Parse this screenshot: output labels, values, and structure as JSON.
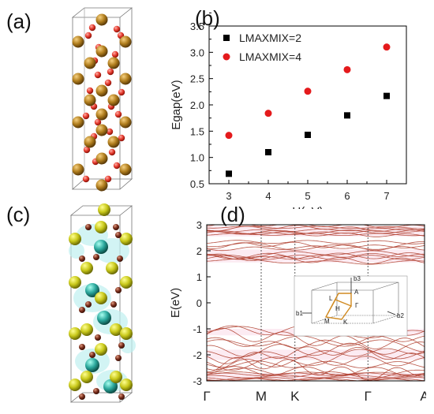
{
  "panels": {
    "a": "(a)",
    "b": "(b)",
    "c": "(c)",
    "d": "(d)"
  },
  "colors": {
    "atom_gold": "#b07d1d",
    "atom_red": "#e53a2e",
    "atom_yellow": "#c8c81a",
    "atom_teal": "#2aa79c",
    "atom_brown": "#7a2e1c",
    "band": "#b04030",
    "bz_path": "#d08a20"
  },
  "chart_data": [
    {
      "type": "scatter",
      "panel": "(b)",
      "xlabel": "U(eV)",
      "ylabel": "Egap(eV)",
      "xlim": [
        2.5,
        7.5
      ],
      "ylim": [
        0.5,
        3.5
      ],
      "xticks": [
        "3",
        "4",
        "5",
        "6",
        "7"
      ],
      "yticks": [
        "0.5",
        "1.0",
        "1.5",
        "2.0",
        "2.5",
        "3.0",
        "3.5"
      ],
      "legend_position": "top-left",
      "series": [
        {
          "name": "LMAXMIX=2",
          "marker": "square",
          "color": "#000000",
          "x": [
            3,
            4,
            5,
            6,
            7
          ],
          "y": [
            0.69,
            1.1,
            1.43,
            1.8,
            2.17
          ]
        },
        {
          "name": "LMAXMIX=4",
          "marker": "circle",
          "color": "#e41a1c",
          "x": [
            3,
            4,
            5,
            6,
            7
          ],
          "y": [
            1.42,
            1.84,
            2.26,
            2.67,
            3.1
          ]
        }
      ]
    },
    {
      "type": "line",
      "panel": "(d)",
      "ylabel": "E(eV)",
      "ylim": [
        -3,
        3
      ],
      "yticks": [
        "-3",
        "-2",
        "-1",
        "0",
        "1",
        "2",
        "3"
      ],
      "kpoints": [
        "Γ",
        "M",
        "K",
        "Γ",
        "A"
      ],
      "kpoint_positions": [
        0,
        0.25,
        0.405,
        0.74,
        1
      ],
      "inset_labels": [
        "b3",
        "A",
        "L",
        "H",
        "Γ",
        "M",
        "K",
        "b1",
        "b2"
      ]
    }
  ]
}
